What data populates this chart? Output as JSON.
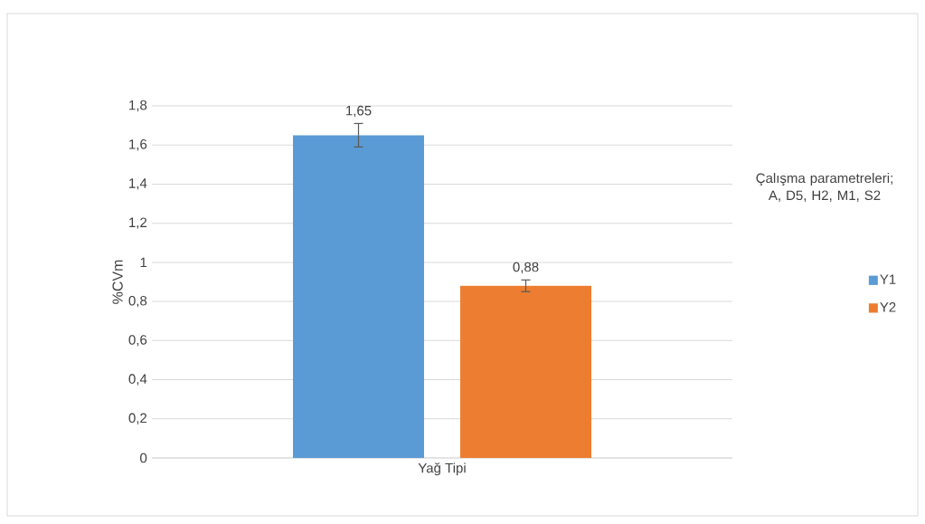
{
  "chart_data": {
    "type": "bar",
    "ylabel": "%CVm",
    "legend_title": "Çalışma parametreleri; A, D5, H2, M1, S2",
    "categories": [
      "Yağ Tipi"
    ],
    "series": [
      {
        "name": "Y1",
        "color": "#5b9bd5",
        "values": [
          1.65
        ],
        "errors": [
          0.06
        ],
        "value_labels": [
          "1,65"
        ]
      },
      {
        "name": "Y2",
        "color": "#ed7d31",
        "values": [
          0.88
        ],
        "errors": [
          0.03
        ],
        "value_labels": [
          "0,88"
        ]
      }
    ],
    "ylim": [
      0,
      1.8
    ],
    "yticks": [
      0,
      {
        "value": 0.2,
        "label": "0,2"
      },
      {
        "value": 0.4,
        "label": "0,4"
      },
      {
        "value": 0.6,
        "label": "0,6"
      },
      {
        "value": 0.8,
        "label": "0,8"
      },
      1,
      {
        "value": 1.2,
        "label": "1,2"
      },
      {
        "value": 1.4,
        "label": "1,4"
      },
      {
        "value": 1.6,
        "label": "1,6"
      },
      {
        "value": 1.8,
        "label": "1,8"
      }
    ],
    "grid": "y",
    "legend": "right"
  }
}
